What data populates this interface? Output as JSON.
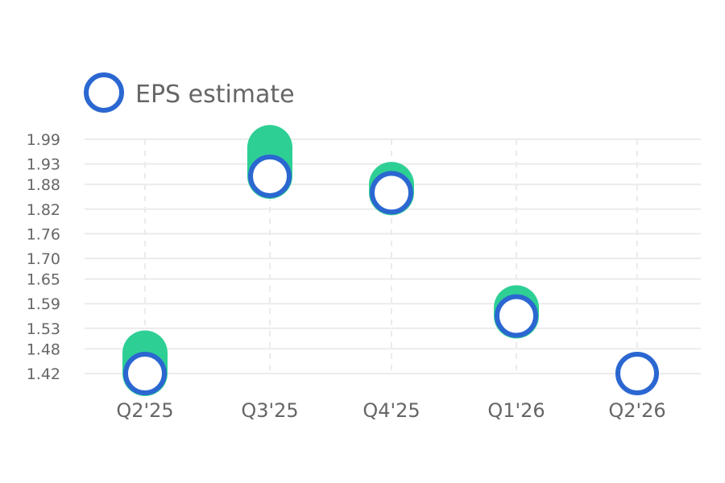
{
  "chart_data": {
    "type": "scatter",
    "title": "",
    "xlabel": "",
    "ylabel": "",
    "categories": [
      "Q2'25",
      "Q3'25",
      "Q4'25",
      "Q1'26",
      "Q2'26"
    ],
    "y_ticks": [
      "1.42",
      "1.48",
      "1.53",
      "1.59",
      "1.65",
      "1.70",
      "1.76",
      "1.82",
      "1.88",
      "1.93",
      "1.99"
    ],
    "ylim": [
      1.42,
      1.99
    ],
    "legend": {
      "label": "EPS estimate",
      "placement": "top-left"
    },
    "grid": {
      "horizontal": true,
      "vertical_dashed": true
    },
    "series": [
      {
        "name": "EPS estimate",
        "role": "estimate",
        "values": [
          1.42,
          1.9,
          1.86,
          1.56,
          1.42
        ]
      },
      {
        "role": "actual",
        "values": [
          1.47,
          1.97,
          1.88,
          1.58,
          null
        ]
      }
    ],
    "colors": {
      "estimate": "#2b67d1",
      "actual": "#2ecf95",
      "grid": "#ebebeb",
      "text": "#666666"
    }
  }
}
